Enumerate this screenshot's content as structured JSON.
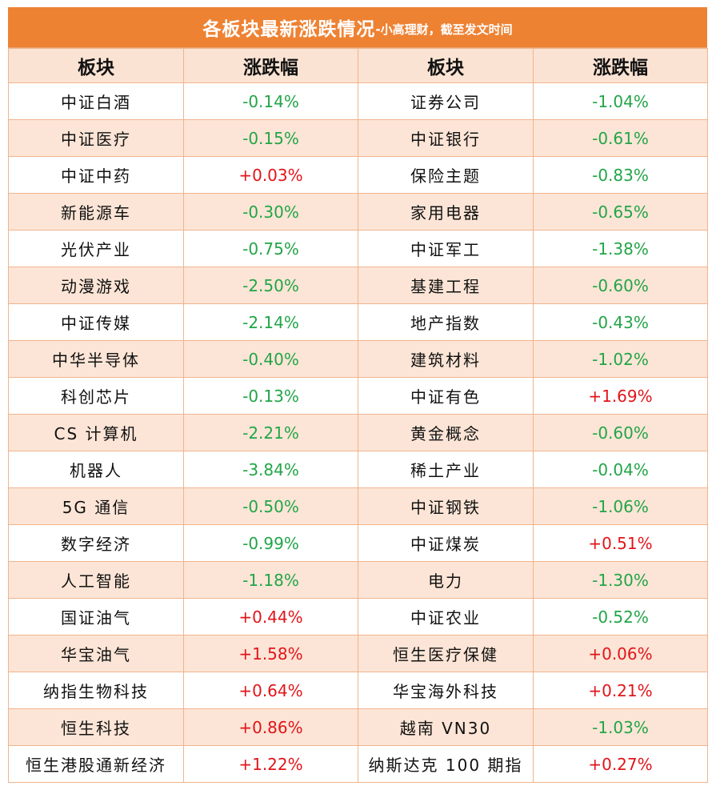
{
  "title": {
    "main": "各板块最新涨跌情况",
    "sub": "-小高理财，截至发文时间"
  },
  "headers": [
    "板块",
    "涨跌幅",
    "板块",
    "涨跌幅"
  ],
  "colors": {
    "header_bg": "#ee8233",
    "row_alt": "#fce5d6",
    "negative": "#22a548",
    "positive": "#e2141a"
  },
  "rows": [
    {
      "left_name": "中证白酒",
      "left_change": "-0.14%",
      "right_name": "证券公司",
      "right_change": "-1.04%"
    },
    {
      "left_name": "中证医疗",
      "left_change": "-0.15%",
      "right_name": "中证银行",
      "right_change": "-0.61%"
    },
    {
      "left_name": "中证中药",
      "left_change": "+0.03%",
      "right_name": "保险主题",
      "right_change": "-0.83%"
    },
    {
      "left_name": "新能源车",
      "left_change": "-0.30%",
      "right_name": "家用电器",
      "right_change": "-0.65%"
    },
    {
      "left_name": "光伏产业",
      "left_change": "-0.75%",
      "right_name": "中证军工",
      "right_change": "-1.38%"
    },
    {
      "left_name": "动漫游戏",
      "left_change": "-2.50%",
      "right_name": "基建工程",
      "right_change": "-0.60%"
    },
    {
      "left_name": "中证传媒",
      "left_change": "-2.14%",
      "right_name": "地产指数",
      "right_change": "-0.43%"
    },
    {
      "left_name": "中华半导体",
      "left_change": "-0.40%",
      "right_name": "建筑材料",
      "right_change": "-1.02%"
    },
    {
      "left_name": "科创芯片",
      "left_change": "-0.13%",
      "right_name": "中证有色",
      "right_change": "+1.69%"
    },
    {
      "left_name": "CS 计算机",
      "left_change": "-2.21%",
      "right_name": "黄金概念",
      "right_change": "-0.60%"
    },
    {
      "left_name": "机器人",
      "left_change": "-3.84%",
      "right_name": "稀土产业",
      "right_change": "-0.04%"
    },
    {
      "left_name": "5G 通信",
      "left_change": "-0.50%",
      "right_name": "中证钢铁",
      "right_change": "-1.06%"
    },
    {
      "left_name": "数字经济",
      "left_change": "-0.99%",
      "right_name": "中证煤炭",
      "right_change": "+0.51%"
    },
    {
      "left_name": "人工智能",
      "left_change": "-1.18%",
      "right_name": "电力",
      "right_change": "-1.30%"
    },
    {
      "left_name": "国证油气",
      "left_change": "+0.44%",
      "right_name": "中证农业",
      "right_change": "-0.52%"
    },
    {
      "left_name": "华宝油气",
      "left_change": "+1.58%",
      "right_name": "恒生医疗保健",
      "right_change": "+0.06%"
    },
    {
      "left_name": "纳指生物科技",
      "left_change": "+0.64%",
      "right_name": "华宝海外科技",
      "right_change": "+0.21%"
    },
    {
      "left_name": "恒生科技",
      "left_change": "+0.86%",
      "right_name": "越南 VN30",
      "right_change": "-1.03%"
    },
    {
      "left_name": "恒生港股通新经济",
      "left_change": "+1.22%",
      "right_name": "纳斯达克 100 期指",
      "right_change": "+0.27%"
    }
  ]
}
